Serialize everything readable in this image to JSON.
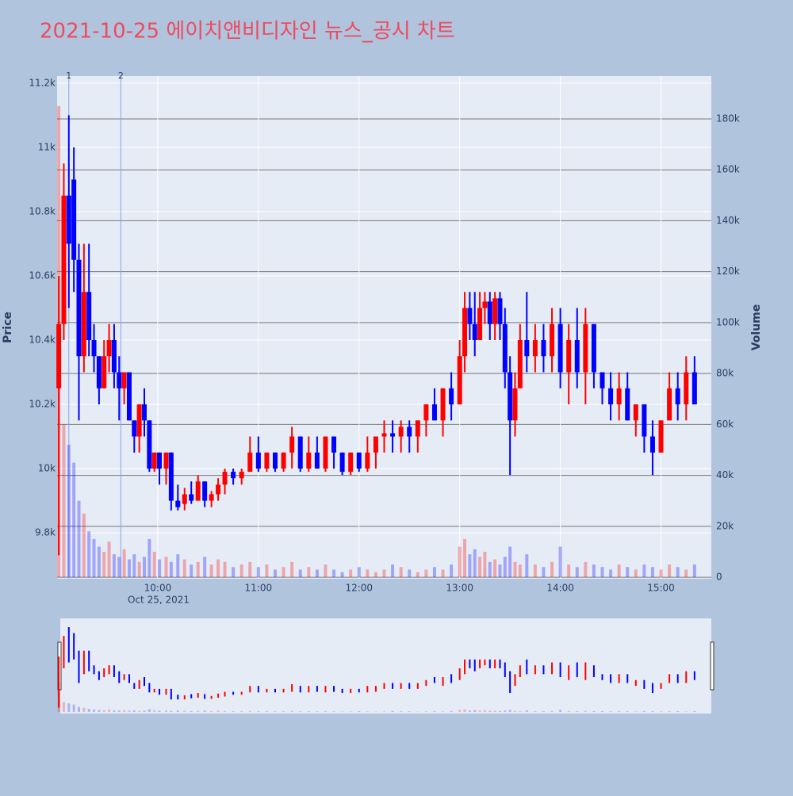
{
  "chart_data": {
    "type": "candlestick",
    "title": "2021-10-25 에이치앤비디자인 뉴스_공시 차트",
    "date_label": "Oct 25, 2021",
    "y_label": "Price",
    "y2_label": "Volume",
    "up_color": "#ff0000",
    "down_color": "#0000ff",
    "xlim": [
      "09:00",
      "15:30"
    ],
    "xticks": [
      "10:00",
      "11:00",
      "12:00",
      "13:00",
      "14:00",
      "15:00"
    ],
    "ylim": [
      9657,
      11222
    ],
    "yticks": [
      {
        "value": 9800,
        "label": "9.8k"
      },
      {
        "value": 10000,
        "label": "10k"
      },
      {
        "value": 10200,
        "label": "10.2k"
      },
      {
        "value": 10400,
        "label": "10.4k"
      },
      {
        "value": 10600,
        "label": "10.6k"
      },
      {
        "value": 10800,
        "label": "10.8k"
      },
      {
        "value": 11000,
        "label": "11k"
      },
      {
        "value": 11200,
        "label": "11.2k"
      }
    ],
    "y2lim": [
      -600,
      196800
    ],
    "y2ticks": [
      0,
      {
        "value": 20000,
        "label": "20k"
      },
      {
        "value": 40000,
        "label": "40k"
      },
      {
        "value": 60000,
        "label": "60k"
      },
      {
        "value": 80000,
        "label": "80k"
      },
      {
        "value": 100000,
        "label": "100k"
      },
      {
        "value": 120000,
        "label": "120k"
      },
      {
        "value": 140000,
        "label": "140k"
      },
      {
        "value": 160000,
        "label": "160k"
      },
      {
        "value": 180000,
        "label": "180k"
      }
    ],
    "annotations": [
      {
        "x": "09:07",
        "text": "1"
      },
      {
        "x": "09:38",
        "text": "2"
      }
    ],
    "x": [
      "09:01",
      "09:04",
      "09:07",
      "09:10",
      "09:13",
      "09:16",
      "09:19",
      "09:22",
      "09:25",
      "09:28",
      "09:31",
      "09:34",
      "09:37",
      "09:40",
      "09:43",
      "09:46",
      "09:49",
      "09:52",
      "09:55",
      "09:58",
      "10:01",
      "10:05",
      "10:08",
      "10:12",
      "10:16",
      "10:20",
      "10:24",
      "10:28",
      "10:32",
      "10:36",
      "10:40",
      "10:45",
      "10:50",
      "10:55",
      "11:00",
      "11:05",
      "11:10",
      "11:15",
      "11:20",
      "11:25",
      "11:30",
      "11:35",
      "11:40",
      "11:45",
      "11:50",
      "11:55",
      "12:00",
      "12:05",
      "12:10",
      "12:15",
      "12:20",
      "12:25",
      "12:30",
      "12:35",
      "12:40",
      "12:45",
      "12:50",
      "12:55",
      "13:00",
      "13:03",
      "13:06",
      "13:09",
      "13:12",
      "13:15",
      "13:18",
      "13:21",
      "13:24",
      "13:27",
      "13:30",
      "13:33",
      "13:36",
      "13:40",
      "13:45",
      "13:50",
      "13:55",
      "14:00",
      "14:05",
      "14:10",
      "14:15",
      "14:20",
      "14:25",
      "14:30",
      "14:35",
      "14:40",
      "14:45",
      "14:50",
      "14:55",
      "15:00",
      "15:05",
      "15:10",
      "15:15",
      "15:20"
    ],
    "open": [
      10250,
      10450,
      10850,
      10900,
      10650,
      10350,
      10550,
      10400,
      10350,
      10250,
      10350,
      10400,
      10300,
      10250,
      10300,
      10150,
      10100,
      10200,
      10150,
      10000,
      10050,
      10000,
      10050,
      9900,
      9890,
      9920,
      9900,
      9960,
      9900,
      9920,
      9950,
      9990,
      9970,
      9990,
      10050,
      10000,
      10050,
      10000,
      10050,
      10100,
      10000,
      10050,
      10000,
      10100,
      10050,
      9990,
      10050,
      10000,
      10050,
      10100,
      10110,
      10100,
      10130,
      10100,
      10150,
      10200,
      10150,
      10250,
      10200,
      10350,
      10500,
      10450,
      10400,
      10500,
      10520,
      10450,
      10530,
      10450,
      10300,
      10150,
      10250,
      10400,
      10350,
      10400,
      10350,
      10450,
      10300,
      10400,
      10300,
      10450,
      10300,
      10250,
      10200,
      10250,
      10150,
      10200,
      10100,
      10050,
      10150,
      10250,
      10200,
      10300
    ],
    "high": [
      10600,
      10950,
      11100,
      11000,
      10700,
      10700,
      10700,
      10450,
      10350,
      10400,
      10450,
      10450,
      10350,
      10300,
      10300,
      10150,
      10200,
      10250,
      10150,
      10050,
      10050,
      10050,
      10050,
      9950,
      9940,
      9960,
      9980,
      9960,
      9930,
      9970,
      10000,
      10000,
      10000,
      10100,
      10100,
      10050,
      10050,
      10050,
      10130,
      10100,
      10100,
      10100,
      10100,
      10100,
      10050,
      10050,
      10050,
      10100,
      10100,
      10150,
      10150,
      10150,
      10150,
      10150,
      10200,
      10250,
      10250,
      10300,
      10400,
      10550,
      10550,
      10550,
      10550,
      10550,
      10550,
      10550,
      10550,
      10500,
      10350,
      10300,
      10450,
      10550,
      10450,
      10450,
      10500,
      10500,
      10450,
      10500,
      10500,
      10450,
      10300,
      10300,
      10300,
      10300,
      10200,
      10200,
      10150,
      10150,
      10300,
      10300,
      10350,
      10350
    ],
    "low": [
      9730,
      10400,
      10500,
      10550,
      10150,
      10300,
      10350,
      10300,
      10200,
      10250,
      10300,
      10250,
      10150,
      10200,
      10150,
      10050,
      10050,
      10100,
      9990,
      9990,
      9950,
      9950,
      9870,
      9870,
      9870,
      9890,
      9900,
      9880,
      9880,
      9900,
      9920,
      9950,
      9950,
      9990,
      9990,
      9990,
      9990,
      9990,
      10000,
      9990,
      9990,
      10000,
      9990,
      10000,
      9980,
      9980,
      9990,
      9990,
      10000,
      10050,
      10050,
      10050,
      10050,
      10050,
      10100,
      10150,
      10100,
      10150,
      10200,
      10300,
      10400,
      10350,
      10400,
      10450,
      10400,
      10400,
      10400,
      10250,
      9980,
      10100,
      10250,
      10300,
      10300,
      10300,
      10300,
      10250,
      10200,
      10250,
      10200,
      10250,
      10200,
      10150,
      10150,
      10150,
      10100,
      10050,
      9980,
      10050,
      10150,
      10150,
      10150,
      10200
    ],
    "close": [
      10450,
      10850,
      10700,
      10650,
      10350,
      10550,
      10400,
      10350,
      10250,
      10350,
      10400,
      10300,
      10250,
      10300,
      10150,
      10100,
      10200,
      10150,
      10000,
      10050,
      10000,
      10050,
      9900,
      9880,
      9920,
      9900,
      9960,
      9900,
      9920,
      9950,
      9990,
      9970,
      9990,
      10050,
      10000,
      10050,
      10000,
      10050,
      10100,
      10000,
      10050,
      10000,
      10100,
      10050,
      9990,
      10050,
      10000,
      10050,
      10100,
      10110,
      10100,
      10130,
      10100,
      10150,
      10200,
      10150,
      10250,
      10200,
      10350,
      10500,
      10450,
      10400,
      10500,
      10520,
      10450,
      10530,
      10450,
      10300,
      10150,
      10250,
      10400,
      10350,
      10400,
      10350,
      10450,
      10300,
      10400,
      10300,
      10450,
      10300,
      10250,
      10200,
      10250,
      10150,
      10200,
      10100,
      10050,
      10150,
      10250,
      10200,
      10300,
      10200
    ],
    "volume": [
      185000,
      60000,
      52000,
      45000,
      30000,
      25000,
      18000,
      15000,
      12000,
      10000,
      14000,
      9000,
      8000,
      11000,
      7000,
      9000,
      6000,
      8000,
      15000,
      10000,
      7000,
      8000,
      6000,
      9000,
      7000,
      5000,
      6000,
      8000,
      5000,
      7000,
      6000,
      4000,
      5000,
      6000,
      4000,
      5000,
      3000,
      4000,
      6000,
      3000,
      4000,
      3000,
      5000,
      3000,
      2000,
      3000,
      4000,
      3000,
      2000,
      3000,
      5000,
      4000,
      3000,
      2000,
      3000,
      4000,
      3000,
      5000,
      12000,
      15000,
      9000,
      11000,
      8000,
      10000,
      6000,
      7000,
      5000,
      8000,
      12000,
      6000,
      5000,
      9000,
      5000,
      4000,
      6000,
      12000,
      5000,
      4000,
      6000,
      5000,
      4000,
      3000,
      5000,
      4000,
      3000,
      5000,
      4000,
      3000,
      5000,
      4000,
      3000,
      5000
    ]
  }
}
